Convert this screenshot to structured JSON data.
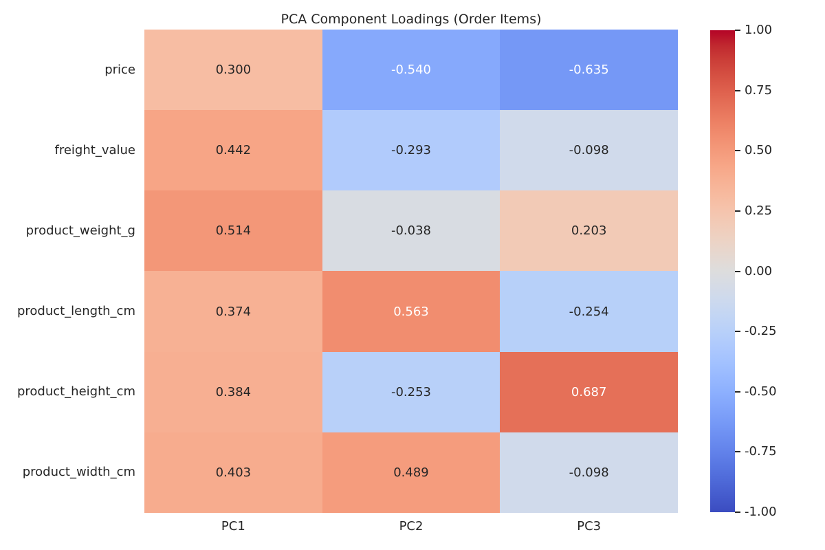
{
  "figure": {
    "background": "#ffffff",
    "text_color": "#262626",
    "annotation_light_color": "#ffffff"
  },
  "chart_data": {
    "type": "heatmap",
    "title": "PCA Component Loadings (Order Items)",
    "rows": [
      "price",
      "freight_value",
      "product_weight_g",
      "product_length_cm",
      "product_height_cm",
      "product_width_cm"
    ],
    "columns": [
      "PC1",
      "PC2",
      "PC3"
    ],
    "values": [
      [
        0.3,
        -0.54,
        -0.635
      ],
      [
        0.442,
        -0.293,
        -0.098
      ],
      [
        0.514,
        -0.038,
        0.203
      ],
      [
        0.374,
        0.563,
        -0.254
      ],
      [
        0.384,
        -0.253,
        0.687
      ],
      [
        0.403,
        0.489,
        -0.098
      ]
    ],
    "value_decimals": 3,
    "colormap": "coolwarm",
    "vmin": -1.0,
    "vmax": 1.0,
    "legend_position": "right-colorbar",
    "grid": false,
    "colorbar_tick_labels": [
      "1.00",
      "0.75",
      "0.50",
      "0.25",
      "0.00",
      "-0.25",
      "-0.50",
      "-0.75",
      "-1.00"
    ],
    "colorbar_tick_values": [
      1.0,
      0.75,
      0.5,
      0.25,
      0.0,
      -0.25,
      -0.5,
      -0.75,
      -1.0
    ]
  }
}
